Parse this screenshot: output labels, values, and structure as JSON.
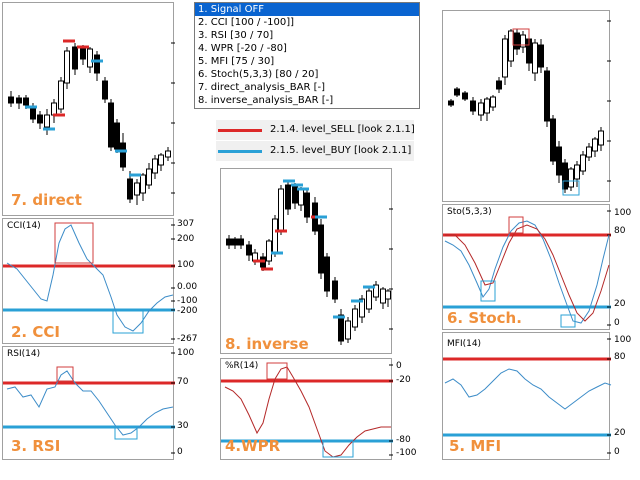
{
  "dropdown": {
    "items": [
      "1. Signal OFF",
      "2. CCI [100 / -100]]",
      "3. RSI [30 / 70]",
      "4. WPR [-20 / -80]",
      "5. MFI [75 / 30]",
      "6. Stoch(5,3,3) [80 / 20]",
      "7. direct_analysis_BAR [-]",
      "8. inverse_analysis_BAR [-]"
    ],
    "selected_index": 0
  },
  "legend": {
    "sell": {
      "label": "2.1.4. level_SELL [look 2.1.1]",
      "color": "#dc2828"
    },
    "buy": {
      "label": "2.1.5. level_BUY [look 2.1.1]",
      "color": "#2aa0d6"
    }
  },
  "colors": {
    "sell": "#dc2828",
    "buy": "#2aa0d6",
    "indicator": "#3c8cc8",
    "indicator2": "#b42828",
    "label": "#f0903c",
    "box": "#d23c3c"
  },
  "panels": {
    "direct": {
      "label": "7. direct"
    },
    "cci": {
      "title": "CCI(14)",
      "label": "2. CCI",
      "ticks": [
        "307",
        "200",
        "100",
        "0.00",
        "-100",
        "-200",
        "-267"
      ]
    },
    "rsi": {
      "title": "RSI(14)",
      "label": "3. RSI",
      "ticks": [
        "100",
        "70",
        "30",
        "0"
      ]
    },
    "inverse": {
      "label": "8. inverse"
    },
    "wpr": {
      "title": "%R(14)",
      "label": "4.WPR",
      "ticks": [
        "0",
        "-20",
        "-80",
        "-100"
      ]
    },
    "chart3": {
      "label": ""
    },
    "stoch": {
      "title": "Sto(5,3,3)",
      "label": "6. Stoch.",
      "ticks": [
        "100",
        "80",
        "20",
        "0"
      ]
    },
    "mfi": {
      "title": "MFI(14)",
      "label": "5. MFI",
      "ticks": [
        "100",
        "80",
        "20",
        "0"
      ]
    }
  }
}
